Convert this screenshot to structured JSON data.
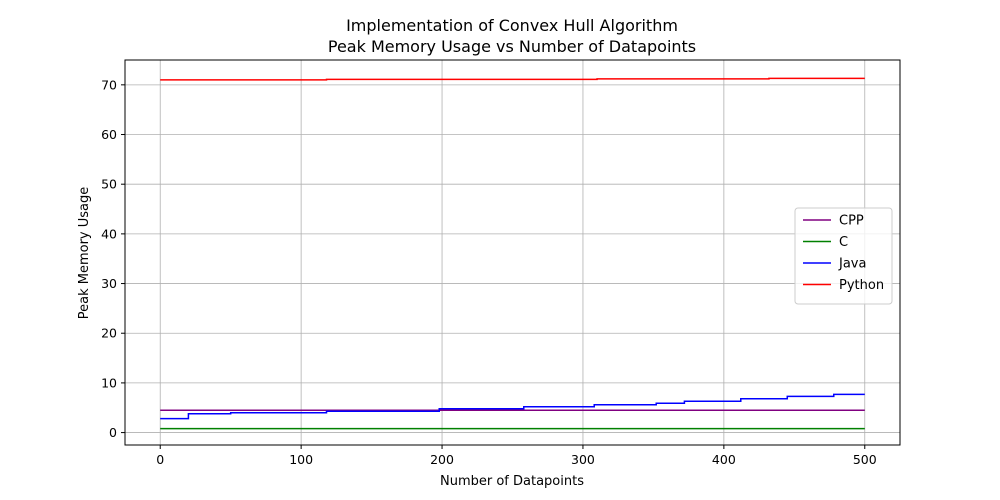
{
  "chart_data": {
    "type": "line",
    "title": "Implementation of Convex Hull Algorithm",
    "subtitle": "Peak Memory Usage vs Number of Datapoints",
    "xlabel": "Number of Datapoints",
    "ylabel": "Peak Memory Usage",
    "xlim": [
      -25,
      525
    ],
    "ylim": [
      -2.5,
      75
    ],
    "xticks": [
      0,
      100,
      200,
      300,
      400,
      500
    ],
    "yticks": [
      0,
      10,
      20,
      30,
      40,
      50,
      60,
      70
    ],
    "grid": true,
    "legend_position": "center-right",
    "step": "post",
    "series": [
      {
        "name": "CPP",
        "color": "#800080",
        "x": [
          0,
          500
        ],
        "y": [
          4.5,
          4.5
        ]
      },
      {
        "name": "C",
        "color": "#008000",
        "x": [
          0,
          500
        ],
        "y": [
          0.8,
          0.8
        ]
      },
      {
        "name": "Java",
        "color": "#0000ff",
        "x": [
          0,
          18,
          20,
          50,
          118,
          198,
          258,
          308,
          352,
          372,
          412,
          445,
          478,
          500
        ],
        "y": [
          2.8,
          2.8,
          3.8,
          4.0,
          4.3,
          4.8,
          5.2,
          5.6,
          5.9,
          6.3,
          6.8,
          7.3,
          7.7,
          7.7
        ]
      },
      {
        "name": "Python",
        "color": "#ff0000",
        "x": [
          0,
          118,
          310,
          432,
          500
        ],
        "y": [
          71.0,
          71.1,
          71.2,
          71.3,
          71.3
        ]
      }
    ]
  }
}
